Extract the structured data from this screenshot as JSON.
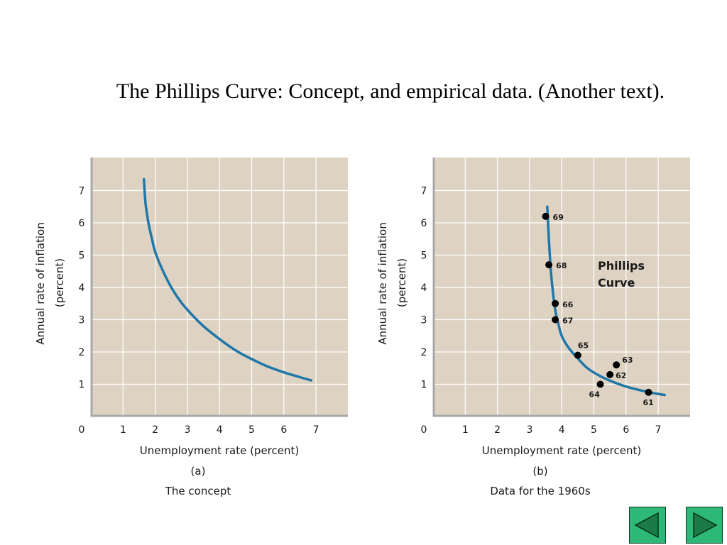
{
  "slide": {
    "title": "The Phillips Curve: Concept, and empirical data. (Another text)."
  },
  "colors": {
    "plot_background": "#ded3c3",
    "grid": "#ffffff",
    "axis": "#a8a8a8",
    "curve": "#1f77a8",
    "point": "#000000",
    "nav_button": "#2db877"
  },
  "chart_data": [
    {
      "type": "line",
      "subtitle": "(a)",
      "caption": "The concept",
      "xlabel": "Unemployment rate (percent)",
      "ylabel_line1": "Annual rate of inflation",
      "ylabel_line2": "(percent)",
      "origin_label": "0",
      "xlim": [
        0,
        8
      ],
      "ylim": [
        0,
        7.8
      ],
      "xticks": [
        "1",
        "2",
        "3",
        "4",
        "5",
        "6",
        "7"
      ],
      "yticks": [
        "1",
        "2",
        "3",
        "4",
        "5",
        "6",
        "7"
      ],
      "grid": true,
      "curve": {
        "x": [
          1.65,
          1.7,
          1.8,
          1.9,
          2.0,
          2.2,
          2.5,
          2.8,
          3.1,
          3.5,
          4.0,
          4.5,
          5.0,
          5.5,
          6.0,
          6.5,
          6.85
        ],
        "y": [
          7.35,
          6.6,
          5.95,
          5.5,
          5.1,
          4.6,
          4.0,
          3.55,
          3.2,
          2.8,
          2.4,
          2.05,
          1.78,
          1.55,
          1.37,
          1.22,
          1.12
        ]
      }
    },
    {
      "type": "scatter",
      "subtitle": "(b)",
      "caption": "Data for the 1960s",
      "xlabel": "Unemployment rate (percent)",
      "ylabel_line1": "Annual rate of inflation",
      "ylabel_line2": "(percent)",
      "origin_label": "0",
      "xlim": [
        0,
        8
      ],
      "ylim": [
        0,
        7.8
      ],
      "xticks": [
        "1",
        "2",
        "3",
        "4",
        "5",
        "6",
        "7"
      ],
      "yticks": [
        "1",
        "2",
        "3",
        "4",
        "5",
        "6",
        "7"
      ],
      "grid": true,
      "annotation_line1": "Phillips",
      "annotation_line2": "Curve",
      "points": [
        {
          "label": "61",
          "x": 6.7,
          "y": 0.75
        },
        {
          "label": "62",
          "x": 5.5,
          "y": 1.3
        },
        {
          "label": "63",
          "x": 5.7,
          "y": 1.6
        },
        {
          "label": "64",
          "x": 5.2,
          "y": 1.0
        },
        {
          "label": "65",
          "x": 4.5,
          "y": 1.9
        },
        {
          "label": "66",
          "x": 3.8,
          "y": 3.5
        },
        {
          "label": "67",
          "x": 3.8,
          "y": 3.0
        },
        {
          "label": "68",
          "x": 3.6,
          "y": 4.7
        },
        {
          "label": "69",
          "x": 3.5,
          "y": 6.2
        }
      ],
      "curve": {
        "x": [
          3.55,
          3.6,
          3.65,
          3.7,
          3.8,
          3.9,
          4.0,
          4.2,
          4.5,
          4.8,
          5.2,
          5.6,
          6.0,
          6.5,
          7.0,
          7.2
        ],
        "y": [
          6.5,
          5.5,
          4.7,
          4.1,
          3.3,
          2.85,
          2.5,
          2.15,
          1.8,
          1.5,
          1.25,
          1.07,
          0.93,
          0.8,
          0.7,
          0.67
        ]
      }
    }
  ],
  "nav": {
    "prev_icon": "triangle-left-icon",
    "next_icon": "triangle-right-icon"
  }
}
